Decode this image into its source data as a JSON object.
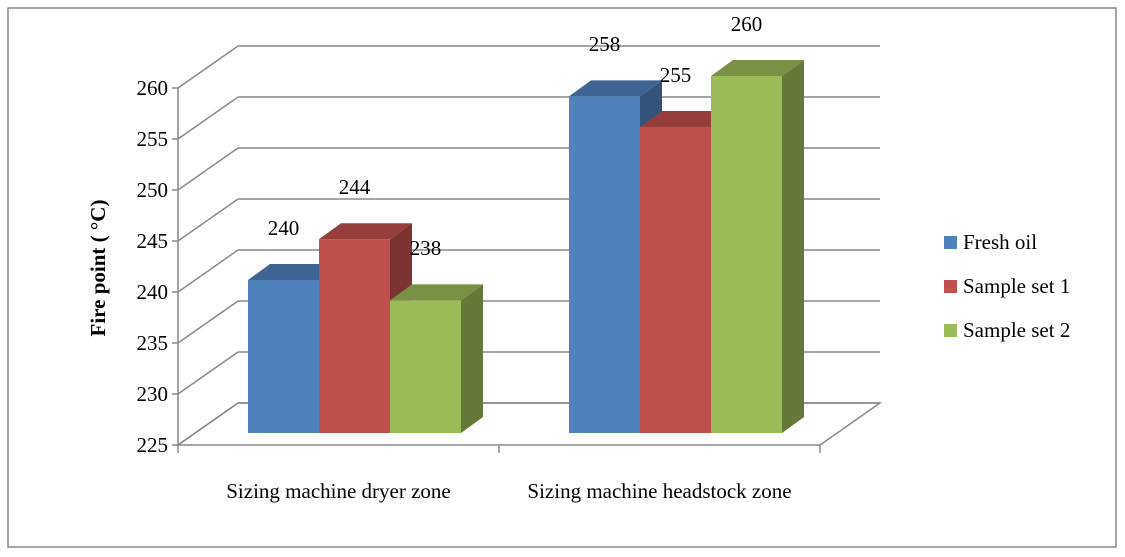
{
  "chart_data": {
    "type": "bar3d",
    "y_label": "Fire point ( °C)",
    "categories": [
      "Sizing machine dryer zone",
      "Sizing machine headstock zone"
    ],
    "series": [
      {
        "name": "Fresh oil",
        "color": "#4f81bd",
        "values": [
          240,
          258
        ]
      },
      {
        "name": "Sample set 1",
        "color": "#c0504d",
        "values": [
          244,
          255
        ]
      },
      {
        "name": "Sample set 2",
        "color": "#9bbb59",
        "values": [
          238,
          260
        ]
      }
    ],
    "ylim": [
      225,
      260
    ],
    "yticks": [
      225,
      230,
      235,
      240,
      245,
      250,
      255,
      260
    ],
    "grid": true,
    "legend": "right"
  }
}
